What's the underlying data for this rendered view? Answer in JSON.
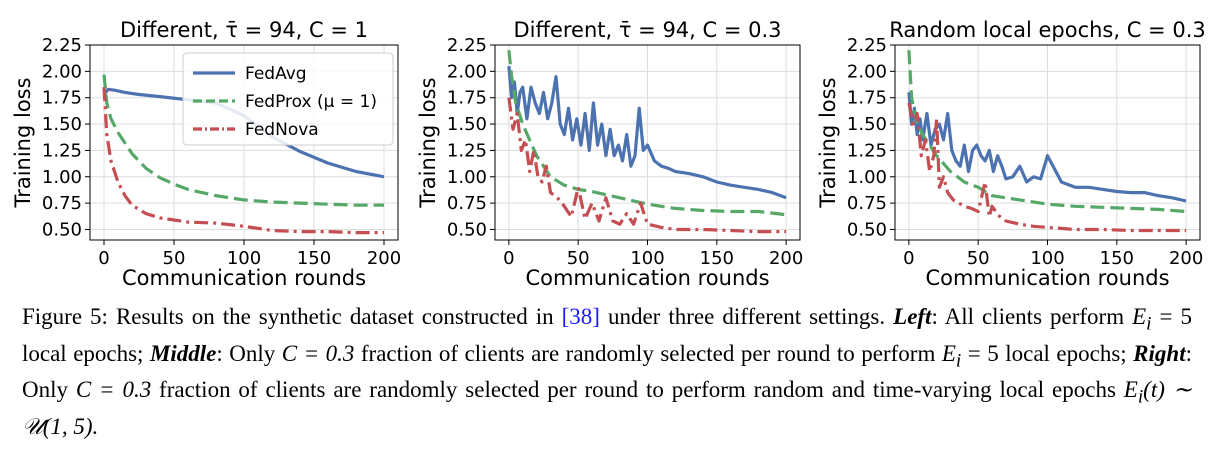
{
  "colors": {
    "FedAvg": "#4c72b0",
    "FedProx": "#55a868",
    "FedNova": "#c44e52",
    "grid": "#dddddd",
    "axis": "#000000"
  },
  "chart_data": [
    {
      "type": "line",
      "title": "Different, τ̄ = 94, C = 1",
      "xlabel": "Communication rounds",
      "ylabel": "Training loss",
      "xlim": [
        -10,
        210
      ],
      "ylim": [
        0.4,
        2.25
      ],
      "xticks": [
        "0",
        "50",
        "100",
        "150",
        "200"
      ],
      "yticks": [
        "0.50",
        "0.75",
        "1.00",
        "1.25",
        "1.50",
        "1.75",
        "2.00",
        "2.25"
      ],
      "grid": true,
      "legend": "top-right",
      "series": [
        {
          "name": "FedAvg",
          "style": "solid",
          "x": [
            0,
            3,
            8,
            15,
            25,
            40,
            60,
            80,
            100,
            110,
            120,
            140,
            160,
            180,
            200
          ],
          "y": [
            1.78,
            1.83,
            1.82,
            1.8,
            1.78,
            1.76,
            1.73,
            1.7,
            1.58,
            1.48,
            1.38,
            1.24,
            1.13,
            1.05,
            1.0
          ]
        },
        {
          "name": "FedProx (μ = 1)",
          "style": "dashed",
          "x": [
            0,
            2,
            5,
            10,
            20,
            30,
            40,
            50,
            60,
            80,
            100,
            120,
            140,
            160,
            180,
            200
          ],
          "y": [
            1.97,
            1.7,
            1.55,
            1.42,
            1.22,
            1.08,
            0.99,
            0.93,
            0.88,
            0.82,
            0.78,
            0.76,
            0.75,
            0.74,
            0.73,
            0.73
          ]
        },
        {
          "name": "FedNova",
          "style": "dashdot",
          "x": [
            0,
            2,
            5,
            10,
            15,
            20,
            30,
            40,
            50,
            60,
            80,
            100,
            120,
            140,
            160,
            180,
            200
          ],
          "y": [
            1.85,
            1.4,
            1.15,
            0.95,
            0.82,
            0.73,
            0.65,
            0.61,
            0.59,
            0.57,
            0.56,
            0.53,
            0.49,
            0.48,
            0.48,
            0.47,
            0.47
          ]
        }
      ]
    },
    {
      "type": "line",
      "title": "Different, τ̄ = 94, C = 0.3",
      "xlabel": "Communication rounds",
      "ylabel": "Training loss",
      "xlim": [
        -10,
        210
      ],
      "ylim": [
        0.4,
        2.25
      ],
      "xticks": [
        "0",
        "50",
        "100",
        "150",
        "200"
      ],
      "yticks": [
        "0.50",
        "0.75",
        "1.00",
        "1.25",
        "1.50",
        "1.75",
        "2.00",
        "2.25"
      ],
      "grid": true,
      "series": [
        {
          "name": "FedAvg",
          "style": "solid",
          "x": [
            0,
            2,
            4,
            6,
            8,
            10,
            13,
            16,
            19,
            22,
            25,
            28,
            31,
            34,
            37,
            40,
            43,
            46,
            49,
            52,
            55,
            58,
            61,
            64,
            67,
            70,
            73,
            76,
            79,
            82,
            85,
            88,
            91,
            94,
            97,
            100,
            105,
            110,
            115,
            120,
            130,
            140,
            150,
            160,
            170,
            180,
            190,
            200
          ],
          "y": [
            2.05,
            1.75,
            1.9,
            1.6,
            1.8,
            1.85,
            1.55,
            1.85,
            1.7,
            1.6,
            1.8,
            1.55,
            1.7,
            1.95,
            1.5,
            1.4,
            1.65,
            1.35,
            1.55,
            1.3,
            1.6,
            1.25,
            1.7,
            1.3,
            1.5,
            1.2,
            1.45,
            1.2,
            1.3,
            1.15,
            1.4,
            1.1,
            1.2,
            1.65,
            1.25,
            1.3,
            1.15,
            1.1,
            1.08,
            1.05,
            1.03,
            1.0,
            0.95,
            0.92,
            0.9,
            0.88,
            0.85,
            0.8
          ]
        },
        {
          "name": "FedProx",
          "style": "dashed",
          "x": [
            0,
            2,
            5,
            10,
            20,
            30,
            40,
            50,
            60,
            80,
            100,
            120,
            140,
            160,
            180,
            200
          ],
          "y": [
            2.2,
            1.95,
            1.7,
            1.5,
            1.2,
            1.0,
            0.92,
            0.88,
            0.86,
            0.8,
            0.74,
            0.7,
            0.68,
            0.67,
            0.67,
            0.64
          ]
        },
        {
          "name": "FedNova",
          "style": "dashdot",
          "x": [
            0,
            3,
            6,
            9,
            12,
            15,
            18,
            21,
            24,
            27,
            30,
            35,
            40,
            45,
            50,
            55,
            60,
            65,
            70,
            75,
            80,
            85,
            90,
            95,
            100,
            110,
            120,
            140,
            160,
            180,
            200
          ],
          "y": [
            1.75,
            1.45,
            1.6,
            1.25,
            1.35,
            1.05,
            1.25,
            1.0,
            0.95,
            1.1,
            0.85,
            0.8,
            0.72,
            0.62,
            0.9,
            0.6,
            0.75,
            0.58,
            0.8,
            0.58,
            0.55,
            0.65,
            0.55,
            0.75,
            0.55,
            0.52,
            0.5,
            0.5,
            0.49,
            0.48,
            0.48
          ]
        }
      ]
    },
    {
      "type": "line",
      "title": "Random local epochs, C = 0.3",
      "xlabel": "Communication rounds",
      "ylabel": "Training loss",
      "xlim": [
        -10,
        210
      ],
      "ylim": [
        0.4,
        2.25
      ],
      "xticks": [
        "0",
        "50",
        "100",
        "150",
        "200"
      ],
      "yticks": [
        "0.50",
        "0.75",
        "1.00",
        "1.25",
        "1.50",
        "1.75",
        "2.00",
        "2.25"
      ],
      "grid": true,
      "series": [
        {
          "name": "FedAvg",
          "style": "solid",
          "x": [
            0,
            2,
            4,
            6,
            8,
            10,
            13,
            16,
            19,
            22,
            25,
            28,
            31,
            34,
            37,
            40,
            43,
            46,
            49,
            52,
            55,
            58,
            61,
            64,
            67,
            70,
            75,
            80,
            85,
            90,
            95,
            100,
            110,
            120,
            130,
            140,
            150,
            160,
            170,
            180,
            190,
            200
          ],
          "y": [
            1.8,
            1.5,
            1.65,
            1.4,
            1.55,
            1.35,
            1.6,
            1.3,
            1.45,
            1.5,
            1.35,
            1.6,
            1.25,
            1.15,
            1.1,
            1.3,
            1.05,
            1.25,
            1.3,
            1.2,
            1.15,
            1.25,
            1.05,
            1.2,
            1.1,
            0.98,
            1.0,
            1.1,
            0.95,
            1.0,
            0.98,
            1.2,
            0.95,
            0.9,
            0.9,
            0.88,
            0.86,
            0.85,
            0.85,
            0.82,
            0.8,
            0.77
          ]
        },
        {
          "name": "FedProx",
          "style": "dashed",
          "x": [
            0,
            2,
            5,
            10,
            20,
            30,
            40,
            50,
            60,
            80,
            100,
            120,
            140,
            160,
            180,
            200
          ],
          "y": [
            2.2,
            1.75,
            1.55,
            1.4,
            1.2,
            1.05,
            0.95,
            0.9,
            0.82,
            0.78,
            0.74,
            0.72,
            0.71,
            0.7,
            0.69,
            0.67
          ]
        },
        {
          "name": "FedNova",
          "style": "dashdot",
          "x": [
            0,
            3,
            6,
            9,
            12,
            15,
            18,
            20,
            22,
            25,
            28,
            32,
            36,
            40,
            45,
            50,
            55,
            58,
            60,
            65,
            70,
            80,
            90,
            100,
            110,
            120,
            140,
            160,
            180,
            200
          ],
          "y": [
            1.7,
            1.5,
            1.6,
            1.2,
            1.35,
            1.05,
            1.2,
            1.55,
            0.9,
            1.0,
            0.85,
            0.78,
            0.75,
            0.72,
            0.7,
            0.67,
            0.95,
            0.62,
            0.72,
            0.63,
            0.58,
            0.55,
            0.53,
            0.52,
            0.51,
            0.5,
            0.5,
            0.49,
            0.49,
            0.49
          ]
        }
      ]
    }
  ],
  "caption": {
    "lead": "Figure 5: Results on the synthetic dataset constructed in ",
    "ref": "[38]",
    "after_ref": " under three different settings. ",
    "left_label": "Left",
    "left_text": ": All clients perform ",
    "left_math": "E",
    "left_sub": "i",
    "left_eq": " = 5",
    "left_end": " local epochs; ",
    "middle_label": "Middle",
    "middle_text": ": Only ",
    "middle_math": "C = 0.3",
    "middle_end": " fraction of clients are randomly selected per round to perform ",
    "middle_math2": "E",
    "middle_sub2": "i",
    "middle_eq2": " = 5",
    "middle_end2": " local epochs; ",
    "right_label": "Right",
    "right_text": ": Only ",
    "right_math": "C = 0.3",
    "right_end": " fraction of clients are randomly selected per round to perform random and time-varying local epochs ",
    "right_math2": "E",
    "right_sub2": "i",
    "right_math3": "(t) ∼ 𝒰(1, 5).",
    "right_tail": ""
  }
}
